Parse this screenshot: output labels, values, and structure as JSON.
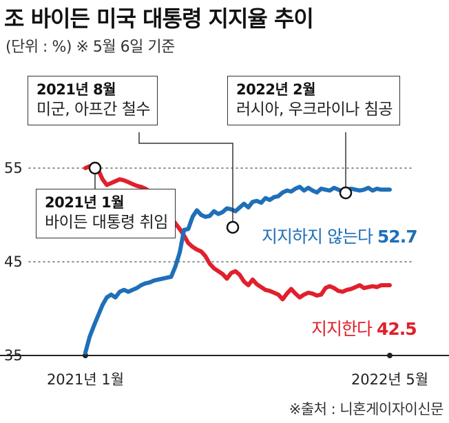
{
  "title": "조 바이든 미국 대통령 지지율 추이",
  "unit": "(단위 : %)  ※ 5월 6일 기준",
  "source": "※출처 : 니혼게이자이신문",
  "annotations": [
    {
      "title": "2021년 8월",
      "text": "미군, 아프간 철수"
    },
    {
      "title": "2022년 2월",
      "text": "러시아, 우크라이나 침공"
    },
    {
      "title": "2021년 1월",
      "text": "바이든 대통령 취임"
    }
  ],
  "chart_data": {
    "type": "line",
    "title": "조 바이든 미국 대통령 지지율 추이",
    "ylabel": "%",
    "ylim": [
      35,
      57
    ],
    "yticks": [
      "55",
      "45",
      "35"
    ],
    "xtick_labels": [
      "2021년 1월",
      "2022년 5월"
    ],
    "grid": "dotted lines at 45 and 55",
    "colors": {
      "approve": "#e0202c",
      "disapprove": "#1f6fb8"
    },
    "series": [
      {
        "name": "지지한다",
        "final_label": "42.5",
        "x": [
          1,
          2,
          3,
          4,
          5,
          6,
          7,
          8,
          9,
          10,
          11,
          12,
          13,
          14,
          15,
          16,
          17,
          18,
          19,
          20,
          21,
          22,
          23,
          24,
          25,
          26,
          27,
          28,
          29,
          30,
          31,
          32,
          33,
          34,
          35,
          36,
          37,
          38,
          39,
          40,
          41,
          42,
          43,
          44,
          45,
          46,
          47,
          48,
          49,
          50,
          51,
          52,
          53,
          54,
          55,
          56,
          57,
          58,
          59,
          60,
          61,
          62,
          63,
          64,
          65,
          66,
          67,
          68,
          69,
          70,
          71,
          72
        ],
        "values": [
          55.0,
          55.2,
          55.0,
          54.8,
          53.8,
          53.2,
          53.4,
          53.6,
          53.8,
          53.7,
          53.5,
          53.3,
          53.1,
          53.0,
          52.8,
          52.5,
          52.0,
          51.5,
          51.0,
          50.4,
          49.7,
          49.1,
          48.5,
          47.8,
          47.0,
          46.6,
          46.3,
          46.1,
          45.6,
          44.8,
          44.3,
          44.0,
          43.7,
          43.2,
          43.8,
          44.0,
          43.6,
          42.9,
          42.5,
          43.1,
          42.6,
          42.3,
          42.0,
          41.9,
          41.7,
          41.5,
          41.0,
          41.6,
          42.1,
          41.6,
          41.2,
          41.5,
          41.7,
          41.6,
          41.4,
          41.5,
          42.2,
          42.4,
          42.2,
          41.9,
          41.8,
          42.0,
          42.1,
          42.3,
          42.5,
          42.2,
          42.3,
          42.4,
          42.3,
          42.5,
          42.5,
          42.5
        ]
      },
      {
        "name": "지지하지 않는다",
        "final_label": "52.7",
        "x": [
          1,
          2,
          3,
          4,
          5,
          6,
          7,
          8,
          9,
          10,
          11,
          12,
          13,
          14,
          15,
          16,
          17,
          18,
          19,
          20,
          21,
          22,
          23,
          24,
          25,
          26,
          27,
          28,
          29,
          30,
          31,
          32,
          33,
          34,
          35,
          36,
          37,
          38,
          39,
          40,
          41,
          42,
          43,
          44,
          45,
          46,
          47,
          48,
          49,
          50,
          51,
          52,
          53,
          54,
          55,
          56,
          57,
          58,
          59,
          60,
          61,
          62,
          63,
          64,
          65,
          66,
          67,
          68,
          69,
          70,
          71,
          72
        ],
        "values": [
          35.3,
          37.0,
          38.2,
          39.3,
          40.4,
          41.2,
          41.5,
          41.2,
          41.8,
          42.0,
          41.8,
          42.0,
          42.2,
          42.5,
          42.7,
          42.8,
          43.0,
          43.1,
          43.2,
          43.3,
          43.4,
          44.5,
          46.0,
          48.4,
          48.5,
          49.8,
          50.5,
          50.0,
          49.8,
          49.9,
          50.4,
          50.1,
          50.3,
          50.7,
          50.6,
          50.4,
          50.8,
          51.2,
          50.8,
          51.4,
          51.5,
          51.3,
          51.8,
          51.6,
          51.9,
          52.0,
          52.4,
          52.6,
          52.5,
          52.8,
          53.0,
          52.6,
          52.9,
          52.6,
          52.4,
          52.8,
          52.7,
          52.6,
          52.9,
          52.7,
          52.5,
          52.7,
          52.8,
          52.7,
          52.6,
          52.7,
          52.9,
          52.6,
          52.8,
          52.7,
          52.7,
          52.7
        ]
      }
    ]
  }
}
